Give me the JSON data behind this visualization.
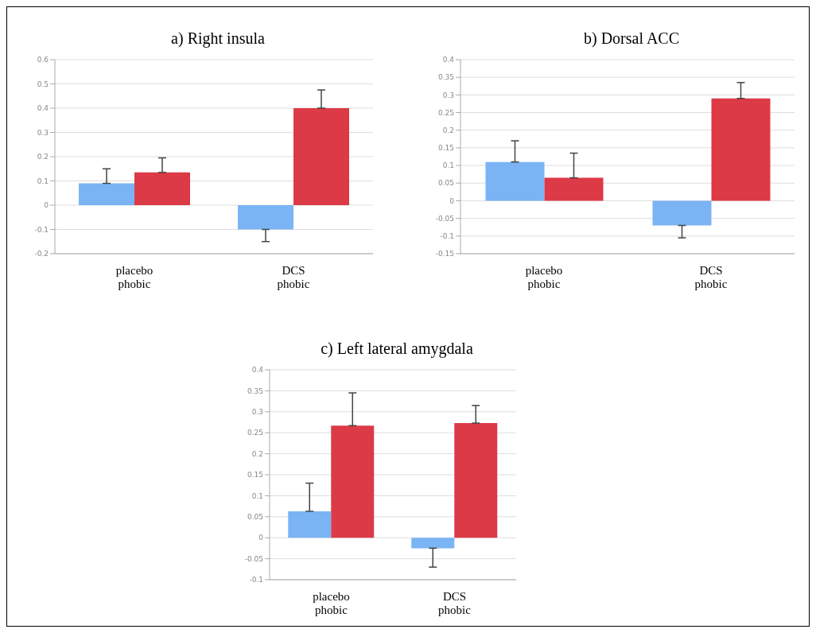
{
  "chart_data": [
    {
      "type": "bar",
      "title": "a) Right insula",
      "categories": [
        "placebo\nphobic",
        "DCS\nphobic"
      ],
      "series": [
        {
          "color": "#7ab4f5",
          "values": [
            0.09,
            -0.1
          ],
          "errors": [
            [
              0.09,
              0.15
            ],
            [
              -0.15,
              -0.1
            ]
          ]
        },
        {
          "color": "#dc3a47",
          "values": [
            0.135,
            0.4
          ],
          "errors": [
            [
              0.135,
              0.195
            ],
            [
              0.4,
              0.475
            ]
          ]
        }
      ],
      "ylim": [
        -0.2,
        0.6
      ],
      "yticks": [
        -0.2,
        -0.1,
        0,
        0.1,
        0.2,
        0.3,
        0.4,
        0.5,
        0.6
      ],
      "grid": "y"
    },
    {
      "type": "bar",
      "title": "b) Dorsal ACC",
      "categories": [
        "placebo\nphobic",
        "DCS\nphobic"
      ],
      "series": [
        {
          "color": "#7ab4f5",
          "values": [
            0.11,
            -0.07
          ],
          "errors": [
            [
              0.11,
              0.17
            ],
            [
              -0.105,
              -0.07
            ]
          ]
        },
        {
          "color": "#dc3a47",
          "values": [
            0.065,
            0.29
          ],
          "errors": [
            [
              0.065,
              0.135
            ],
            [
              0.29,
              0.335
            ]
          ]
        }
      ],
      "ylim": [
        -0.15,
        0.4
      ],
      "yticks": [
        -0.15,
        -0.1,
        -0.05,
        0,
        0.05,
        0.1,
        0.15,
        0.2,
        0.25,
        0.3,
        0.35,
        0.4
      ],
      "grid": "y"
    },
    {
      "type": "bar",
      "title": "c) Left lateral amygdala",
      "categories": [
        "placebo\nphobic",
        "DCS\nphobic"
      ],
      "series": [
        {
          "color": "#7ab4f5",
          "values": [
            0.063,
            -0.025
          ],
          "errors": [
            [
              0.063,
              0.13
            ],
            [
              -0.07,
              -0.025
            ]
          ]
        },
        {
          "color": "#dc3a47",
          "values": [
            0.267,
            0.273
          ],
          "errors": [
            [
              0.267,
              0.345
            ],
            [
              0.273,
              0.315
            ]
          ]
        }
      ],
      "ylim": [
        -0.1,
        0.4
      ],
      "yticks": [
        -0.1,
        -0.05,
        0,
        0.05,
        0.1,
        0.15,
        0.2,
        0.25,
        0.3,
        0.35,
        0.4
      ],
      "grid": "y"
    }
  ]
}
